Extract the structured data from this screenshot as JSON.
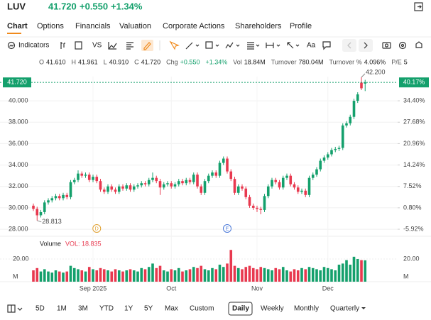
{
  "header": {
    "symbol": "LUV",
    "price": "41.720",
    "change": "+0.550",
    "change_pct": "+1.34%"
  },
  "tabs": [
    "Chart",
    "Options",
    "Financials",
    "Valuation",
    "Corporate Actions",
    "Shareholders",
    "Profile"
  ],
  "toolbar": {
    "indicators": "Indicators",
    "compare": "VS",
    "text_tool": "Aa"
  },
  "info": [
    {
      "label": "O",
      "value": "41.610"
    },
    {
      "label": "H",
      "value": "41.961"
    },
    {
      "label": "L",
      "value": "40.910"
    },
    {
      "label": "C",
      "value": "41.720"
    },
    {
      "label": "Chg",
      "value": "+0.550"
    },
    {
      "value": "+1.34%"
    },
    {
      "label": "Vol",
      "value": "18.84M"
    },
    {
      "label": "Turnover",
      "value": "780.04M"
    },
    {
      "label": "Turnover %",
      "value": "4.096%"
    },
    {
      "label": "P/E",
      "value": "5"
    }
  ],
  "chart_data": {
    "type": "candlestick",
    "categories": [
      null,
      null,
      null,
      null,
      null,
      null,
      null,
      null,
      null,
      null,
      null,
      null,
      null,
      null,
      null,
      null,
      "Sep 2025",
      null,
      null,
      null,
      null,
      null,
      null,
      null,
      null,
      null,
      null,
      null,
      null,
      null,
      null,
      null,
      null,
      null,
      null,
      null,
      null,
      "Oct",
      null,
      null,
      null,
      null,
      null,
      null,
      null,
      null,
      null,
      null,
      null,
      null,
      null,
      null,
      null,
      null,
      null,
      null,
      null,
      null,
      null,
      null,
      "Nov",
      null,
      null,
      null,
      null,
      null,
      null,
      null,
      null,
      null,
      null,
      null,
      null,
      null,
      null,
      null,
      null,
      null,
      null,
      "Dec",
      null,
      null,
      null,
      null,
      null,
      null,
      null,
      null,
      null,
      null
    ],
    "events": [
      null,
      null,
      null,
      null,
      null,
      null,
      null,
      null,
      null,
      null,
      null,
      null,
      null,
      null,
      null,
      null,
      null,
      "D",
      null,
      null,
      null,
      null,
      null,
      null,
      null,
      null,
      null,
      null,
      null,
      null,
      null,
      null,
      null,
      null,
      null,
      null,
      null,
      null,
      null,
      null,
      null,
      null,
      null,
      null,
      null,
      null,
      null,
      null,
      null,
      null,
      null,
      null,
      "E",
      null,
      null,
      null,
      null,
      null,
      null,
      null,
      null,
      null,
      null,
      null,
      null,
      null,
      null,
      null,
      null,
      null,
      null,
      null,
      null,
      null,
      null,
      null,
      null,
      null,
      null,
      null,
      null,
      null,
      null,
      null,
      null,
      null,
      null,
      null,
      null,
      null
    ],
    "open": [
      30.2,
      29.9,
      29.3,
      29.6,
      30.5,
      30.7,
      30.9,
      31.1,
      30.9,
      31.2,
      31.0,
      32.4,
      32.6,
      33.2,
      33.0,
      33.1,
      32.6,
      32.9,
      32.5,
      31.7,
      31.5,
      32.0,
      31.7,
      31.5,
      32.0,
      31.8,
      32.1,
      31.7,
      32.0,
      32.1,
      32.3,
      32.2,
      32.6,
      32.8,
      32.5,
      31.9,
      32.2,
      32.3,
      32.0,
      32.2,
      32.5,
      32.3,
      32.6,
      32.4,
      33.1,
      32.0,
      31.4,
      32.5,
      33.0,
      33.3,
      33.0,
      34.2,
      34.6,
      33.4,
      32.7,
      31.4,
      32.0,
      31.8,
      31.0,
      30.2,
      30.0,
      29.9,
      29.8,
      31.1,
      32.0,
      32.6,
      32.4,
      31.9,
      32.8,
      33.0,
      32.2,
      31.9,
      31.5,
      31.6,
      31.2,
      32.8,
      33.1,
      33.6,
      34.4,
      34.7,
      35.0,
      35.4,
      35.5,
      35.6,
      37.7,
      37.9,
      38.5,
      40.0,
      41.7,
      41.61
    ],
    "high": [
      30.4,
      30.1,
      29.8,
      30.7,
      30.9,
      31.1,
      31.3,
      31.3,
      31.4,
      31.4,
      32.6,
      32.8,
      33.5,
      33.4,
      33.3,
      33.3,
      33.1,
      33.1,
      32.7,
      31.9,
      32.2,
      32.2,
      31.9,
      32.2,
      32.2,
      32.3,
      32.3,
      32.2,
      32.3,
      32.5,
      32.5,
      32.8,
      33.3,
      33.0,
      32.7,
      32.4,
      32.5,
      32.5,
      32.4,
      32.7,
      32.7,
      32.8,
      32.8,
      33.3,
      33.3,
      32.2,
      32.7,
      33.2,
      33.5,
      33.5,
      34.4,
      34.8,
      34.8,
      33.6,
      32.9,
      32.2,
      32.2,
      32.0,
      31.2,
      30.4,
      30.2,
      30.1,
      31.3,
      32.2,
      32.8,
      32.8,
      32.6,
      33.0,
      33.2,
      33.2,
      32.4,
      32.1,
      31.8,
      31.8,
      33.0,
      33.3,
      33.8,
      34.6,
      34.9,
      35.2,
      35.6,
      35.7,
      35.8,
      37.9,
      38.1,
      38.7,
      40.2,
      40.8,
      42.2,
      41.961
    ],
    "low": [
      29.7,
      28.813,
      29.1,
      29.4,
      30.3,
      30.5,
      30.7,
      30.7,
      30.7,
      30.8,
      30.8,
      32.2,
      32.4,
      32.8,
      32.8,
      32.4,
      32.4,
      32.3,
      31.5,
      31.3,
      31.3,
      31.5,
      31.3,
      31.3,
      31.6,
      31.6,
      31.5,
      31.5,
      31.8,
      31.9,
      32.0,
      32.0,
      32.4,
      32.3,
      31.2,
      31.7,
      32.0,
      31.8,
      31.8,
      32.0,
      32.1,
      32.1,
      32.2,
      32.2,
      31.8,
      31.2,
      31.2,
      32.3,
      32.8,
      32.8,
      32.8,
      34.0,
      33.2,
      32.5,
      31.2,
      31.2,
      31.6,
      30.8,
      30.0,
      29.8,
      29.6,
      29.4,
      29.6,
      30.9,
      31.8,
      32.2,
      31.7,
      31.7,
      32.6,
      32.0,
      31.7,
      31.3,
      31.3,
      31.0,
      31.0,
      32.6,
      32.9,
      33.4,
      34.2,
      34.5,
      34.8,
      35.2,
      35.3,
      35.4,
      37.5,
      37.7,
      38.3,
      39.8,
      41.0,
      40.91
    ],
    "close": [
      29.9,
      29.3,
      29.6,
      30.5,
      30.7,
      30.9,
      31.1,
      30.9,
      31.2,
      31.0,
      32.4,
      32.6,
      33.2,
      33.0,
      33.1,
      32.6,
      32.9,
      32.5,
      31.7,
      31.5,
      32.0,
      31.7,
      31.5,
      32.0,
      31.8,
      32.1,
      31.7,
      32.0,
      32.1,
      32.3,
      32.2,
      32.6,
      32.8,
      32.5,
      31.9,
      32.2,
      32.3,
      32.0,
      32.2,
      32.5,
      32.3,
      32.6,
      32.4,
      33.1,
      32.0,
      31.4,
      32.5,
      33.0,
      33.3,
      33.0,
      34.2,
      34.6,
      33.4,
      32.7,
      31.4,
      32.0,
      31.8,
      31.0,
      30.2,
      30.0,
      29.9,
      29.8,
      31.1,
      32.0,
      32.6,
      32.4,
      31.9,
      32.8,
      33.0,
      32.2,
      31.9,
      31.5,
      31.6,
      31.2,
      32.8,
      33.1,
      33.6,
      34.4,
      34.7,
      35.0,
      35.4,
      35.5,
      35.6,
      37.7,
      37.9,
      38.5,
      40.0,
      40.6,
      41.17,
      41.72
    ],
    "volume": [
      10,
      12,
      9,
      11,
      9,
      8,
      10,
      9,
      8,
      9,
      14,
      12,
      11,
      10,
      9,
      13,
      11,
      10,
      12,
      11,
      10,
      9,
      11,
      10,
      9,
      10,
      11,
      10,
      9,
      12,
      11,
      13,
      16,
      12,
      14,
      10,
      9,
      11,
      10,
      12,
      9,
      10,
      11,
      13,
      12,
      14,
      11,
      10,
      12,
      11,
      15,
      13,
      16,
      28,
      14,
      12,
      11,
      13,
      14,
      12,
      11,
      13,
      12,
      11,
      10,
      12,
      11,
      13,
      10,
      9,
      11,
      10,
      12,
      11,
      13,
      12,
      11,
      10,
      13,
      12,
      11,
      10,
      15,
      16,
      19,
      15,
      22,
      20,
      19,
      18.835
    ],
    "up_color": "#14a06c",
    "down_color": "#e8394f",
    "ylim": [
      27.54,
      42.26
    ],
    "yticks": [
      {
        "value": 28,
        "label": "28.000"
      },
      {
        "value": 30,
        "label": "30.000"
      },
      {
        "value": 32,
        "label": "32.000"
      },
      {
        "value": 34,
        "label": "34.000"
      },
      {
        "value": 36,
        "label": "36.000"
      },
      {
        "value": 38,
        "label": "38.000"
      },
      {
        "value": 40,
        "label": "40.000"
      }
    ],
    "y2lim": [
      -7.47,
      41.99
    ],
    "y2ticks": [
      {
        "value": -5.92,
        "label": "-5.92%"
      },
      {
        "value": 0.8,
        "label": "0.80%"
      },
      {
        "value": 7.52,
        "label": "7.52%"
      },
      {
        "value": 14.24,
        "label": "14.24%"
      },
      {
        "value": 20.96,
        "label": "20.96%"
      },
      {
        "value": 27.68,
        "label": "27.68%"
      },
      {
        "value": 34.4,
        "label": "34.40%"
      }
    ],
    "last_label": "41.720",
    "last_pct_label": "40.17%",
    "high_label": "42.200",
    "low_label": "28.813",
    "volume_title": "Volume",
    "volume_label": "VOL: 18.835",
    "vlim": [
      0,
      29.4
    ],
    "vticks": [
      {
        "value": 20,
        "label": "20.00"
      }
    ],
    "volume_unit": "M"
  },
  "periods": [
    "5D",
    "1M",
    "3M",
    "YTD",
    "1Y",
    "5Y",
    "Max",
    "Custom",
    "Daily",
    "Weekly",
    "Monthly",
    "Quarterly"
  ],
  "selected_period": "Daily"
}
